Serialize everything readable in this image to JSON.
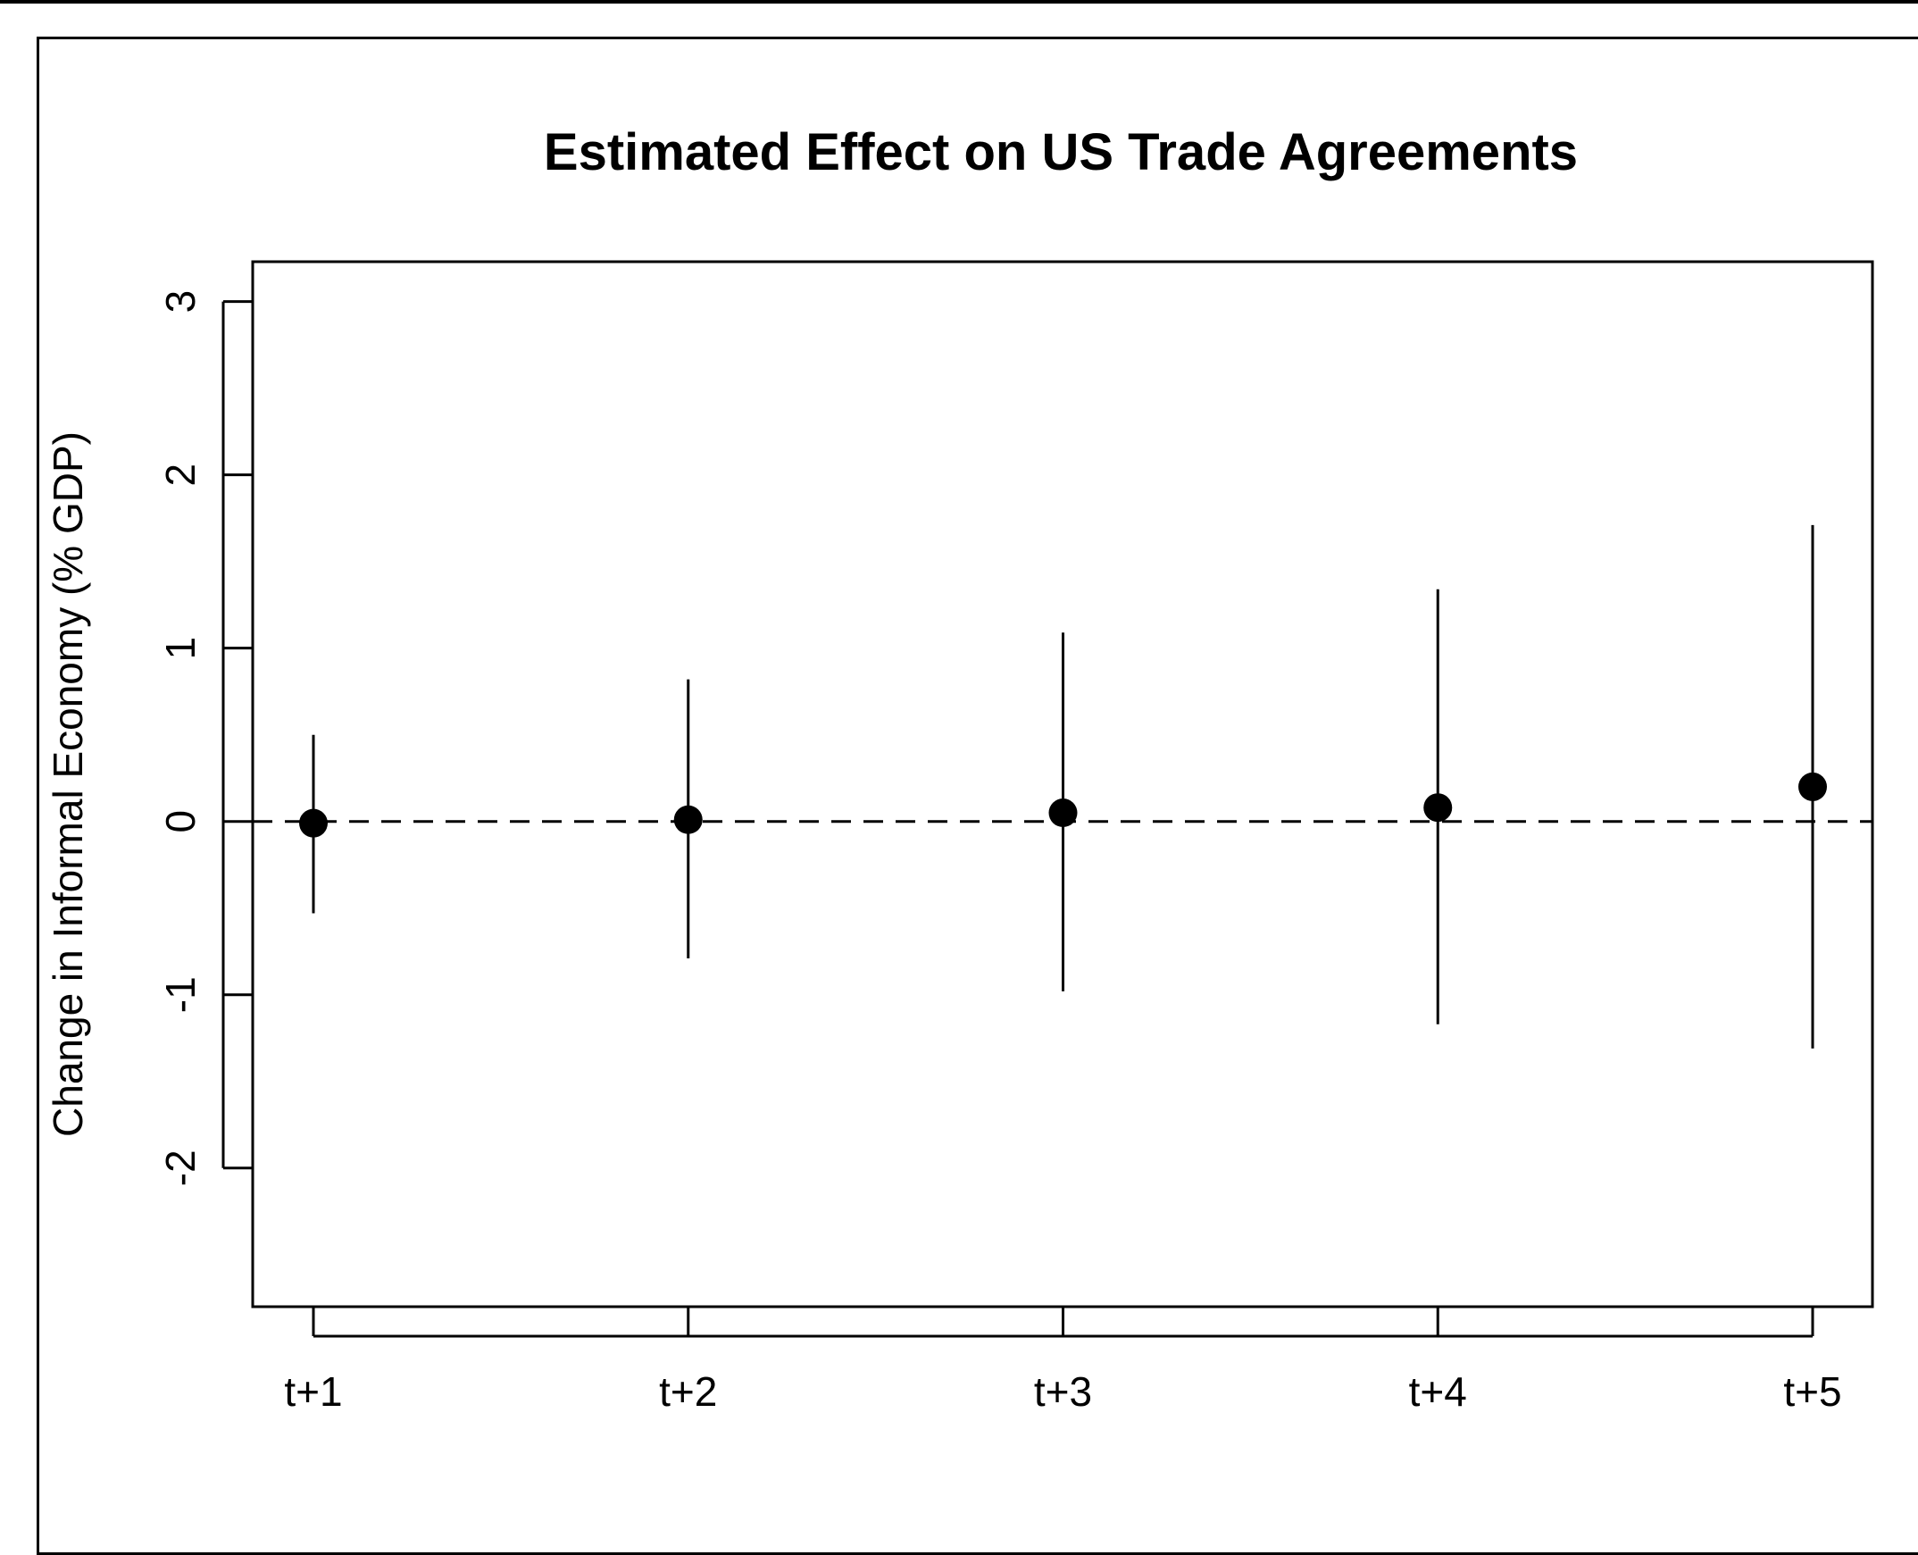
{
  "chart_data": {
    "type": "scatter",
    "title": "Estimated Effect on US Trade Agreements",
    "xlabel": "",
    "ylabel": "Change in Informal Economy (% GDP)",
    "categories": [
      "t+1",
      "t+2",
      "t+3",
      "t+4",
      "t+5"
    ],
    "series": [
      {
        "values": [
          -0.01,
          0.01,
          0.05,
          0.08,
          0.2
        ],
        "lower": [
          -0.53,
          -0.79,
          -0.98,
          -1.17,
          -1.31
        ],
        "upper": [
          0.5,
          0.82,
          1.09,
          1.34,
          1.71
        ]
      }
    ],
    "ylim": [
      -2.8,
      3.23
    ],
    "yticks": [
      -2,
      -1,
      0,
      1,
      2,
      3
    ],
    "ytick_labels": [
      "-2",
      "-1",
      "0",
      "1",
      "2",
      "3"
    ],
    "reference_line": {
      "y": 0,
      "style": "dashed"
    },
    "grid": false,
    "legend": "none",
    "colors": {
      "marker": "#000000",
      "lines": "#000000"
    }
  }
}
